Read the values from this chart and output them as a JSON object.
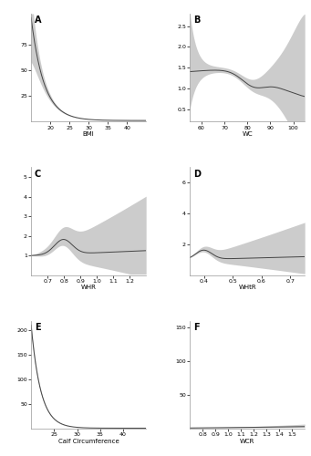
{
  "panels": [
    {
      "label": "A",
      "xlabel": "BMI",
      "xlim": [
        15,
        45
      ],
      "ylim": [
        0.0,
        105
      ],
      "yticks": [
        25,
        50,
        75
      ],
      "ytick_labels": [
        "25",
        "50",
        "75"
      ],
      "xticks": [
        20,
        25,
        30,
        35,
        40
      ],
      "curve_type": "decay_sharp"
    },
    {
      "label": "B",
      "xlabel": "WC",
      "xlim": [
        55,
        105
      ],
      "ylim": [
        0.2,
        2.8
      ],
      "yticks": [
        0.5,
        1.0,
        1.5,
        2.0,
        2.5
      ],
      "ytick_labels": [
        "0.5",
        "1.0",
        "1.5",
        "2.0",
        "2.5"
      ],
      "xticks": [
        60,
        70,
        80,
        90,
        100
      ],
      "curve_type": "wc_shape"
    },
    {
      "label": "C",
      "xlabel": "WHR",
      "xlim": [
        0.6,
        1.3
      ],
      "ylim": [
        0,
        5.5
      ],
      "yticks": [
        1,
        2,
        3,
        4,
        5
      ],
      "ytick_labels": [
        "1",
        "2",
        "3",
        "4",
        "5"
      ],
      "xticks": [
        0.7,
        0.8,
        0.9,
        1.0,
        1.1,
        1.2
      ],
      "curve_type": "whr_shape"
    },
    {
      "label": "D",
      "xlabel": "WHtR",
      "xlim": [
        0.35,
        0.75
      ],
      "ylim": [
        0,
        7
      ],
      "yticks": [
        2,
        4,
        6
      ],
      "ytick_labels": [
        "2",
        "4",
        "6"
      ],
      "xticks": [
        0.4,
        0.5,
        0.6,
        0.7
      ],
      "curve_type": "whtr_shape"
    },
    {
      "label": "E",
      "xlabel": "Calf Circumference",
      "xlim": [
        20,
        45
      ],
      "ylim": [
        0,
        220
      ],
      "yticks": [
        50,
        100,
        150,
        200
      ],
      "ytick_labels": [
        "50",
        "100",
        "150",
        "200"
      ],
      "xticks": [
        25,
        30,
        35,
        40
      ],
      "curve_type": "calf_decay"
    },
    {
      "label": "F",
      "xlabel": "WCR",
      "xlim": [
        0.7,
        1.6
      ],
      "ylim": [
        0,
        160
      ],
      "yticks": [
        50,
        100,
        150
      ],
      "ytick_labels": [
        "50",
        "100",
        "150"
      ],
      "xticks": [
        0.8,
        0.9,
        1.0,
        1.1,
        1.2,
        1.3,
        1.4,
        1.5
      ],
      "curve_type": "wcr_shape"
    }
  ],
  "line_color": "#444444",
  "fill_color": "#bbbbbb",
  "fill_alpha": 0.75,
  "background_color": "#ffffff",
  "label_fontsize": 7,
  "tick_fontsize": 4.5,
  "xlabel_fontsize": 5
}
